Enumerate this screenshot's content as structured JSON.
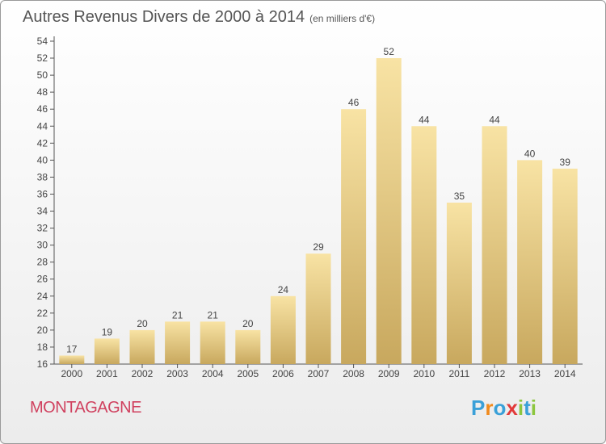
{
  "title": "Autres Revenus Divers de 2000 à 2014",
  "unit": "(en milliers d'€)",
  "commune": "MONTAGAGNE",
  "logo": {
    "letters": [
      "P",
      "r",
      "o",
      "x",
      "i",
      "t",
      "i"
    ],
    "colors": [
      "#3aa0d8",
      "#f08a1c",
      "#3aa0d8",
      "#e23a3a",
      "#8cc63f",
      "#3aa0d8",
      "#8cc63f"
    ]
  },
  "colors": {
    "bar_light": "#f8e3a4",
    "bar_dark": "#c8a85e",
    "axis": "#555555",
    "grid": "#dddddd",
    "commune": "#d0415f"
  },
  "chart_data": {
    "type": "bar",
    "title": "Autres Revenus Divers de 2000 à 2014",
    "categories": [
      "2000",
      "2001",
      "2002",
      "2003",
      "2004",
      "2005",
      "2006",
      "2007",
      "2008",
      "2009",
      "2010",
      "2011",
      "2012",
      "2013",
      "2014"
    ],
    "values": [
      17,
      19,
      20,
      21,
      21,
      20,
      24,
      29,
      46,
      52,
      44,
      35,
      44,
      40,
      39
    ],
    "ylim": [
      16,
      54
    ],
    "yticks": [
      16,
      18,
      20,
      22,
      24,
      26,
      28,
      30,
      32,
      34,
      36,
      38,
      40,
      42,
      44,
      46,
      48,
      50,
      52,
      54
    ],
    "grid": false,
    "legend": "none"
  }
}
